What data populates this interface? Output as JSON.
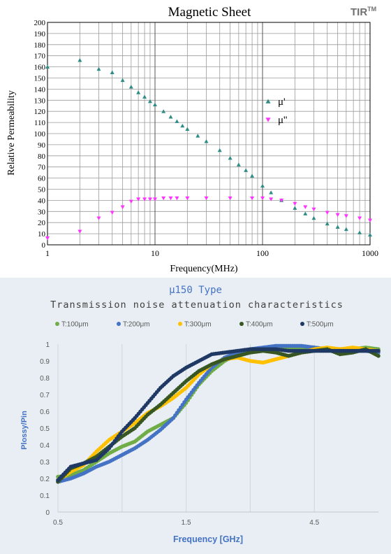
{
  "chart_data": [
    {
      "type": "scatter",
      "title": "Magnetic Sheet",
      "brand": "TIR",
      "brand_sup": "TM",
      "xlabel": "Frequency(MHz)",
      "ylabel": "Relative Permeability",
      "xscale": "log",
      "xlim": [
        1,
        1000
      ],
      "ylim": [
        0,
        200
      ],
      "x_ticks": [
        1,
        10,
        100,
        1000
      ],
      "y_ticks": [
        0,
        10,
        20,
        30,
        40,
        50,
        60,
        70,
        80,
        90,
        100,
        110,
        120,
        130,
        140,
        150,
        160,
        170,
        180,
        190,
        200
      ],
      "grid": true,
      "legend": "right",
      "series": [
        {
          "name": "μ'",
          "marker": "triangle-up",
          "color": "#2e8b85",
          "points": [
            [
              1,
              160
            ],
            [
              2,
              166
            ],
            [
              3,
              158
            ],
            [
              4,
              155
            ],
            [
              5,
              148
            ],
            [
              6,
              142
            ],
            [
              7,
              137
            ],
            [
              8,
              133
            ],
            [
              9,
              129
            ],
            [
              10,
              126
            ],
            [
              12,
              120
            ],
            [
              14,
              115
            ],
            [
              16,
              111
            ],
            [
              18,
              107
            ],
            [
              20,
              104
            ],
            [
              25,
              98
            ],
            [
              30,
              93
            ],
            [
              40,
              85
            ],
            [
              50,
              78
            ],
            [
              60,
              72
            ],
            [
              70,
              67
            ],
            [
              80,
              62
            ],
            [
              100,
              53
            ],
            [
              120,
              47
            ],
            [
              150,
              40
            ],
            [
              200,
              33
            ],
            [
              250,
              28
            ],
            [
              300,
              24
            ],
            [
              400,
              19
            ],
            [
              500,
              16
            ],
            [
              600,
              14
            ],
            [
              800,
              11
            ],
            [
              1000,
              9
            ]
          ]
        },
        {
          "name": "μ''",
          "marker": "triangle-down",
          "color": "#ff33ff",
          "points": [
            [
              1,
              6
            ],
            [
              2,
              12
            ],
            [
              3,
              24
            ],
            [
              4,
              29
            ],
            [
              5,
              34
            ],
            [
              6,
              39
            ],
            [
              7,
              41
            ],
            [
              8,
              41
            ],
            [
              9,
              41
            ],
            [
              10,
              41
            ],
            [
              12,
              42
            ],
            [
              14,
              42
            ],
            [
              16,
              42
            ],
            [
              20,
              42
            ],
            [
              30,
              42
            ],
            [
              50,
              42
            ],
            [
              80,
              42
            ],
            [
              100,
              42
            ],
            [
              120,
              41
            ],
            [
              150,
              40
            ],
            [
              200,
              37
            ],
            [
              250,
              34
            ],
            [
              300,
              32
            ],
            [
              400,
              29
            ],
            [
              500,
              27
            ],
            [
              600,
              26
            ],
            [
              800,
              24
            ],
            [
              1000,
              22
            ]
          ]
        }
      ]
    },
    {
      "type": "scatter",
      "title": "μ150 Type",
      "subtitle": "Transmission noise attenuation characteristics",
      "xlabel": "Frequency [GHz]",
      "ylabel": "Plossy/Pin",
      "xlim": [
        0.5,
        5.5
      ],
      "ylim": [
        0,
        1
      ],
      "x_ticks": [
        0.5,
        1.5,
        2.5,
        3.5,
        4.5
      ],
      "x_tick_labels": [
        "0.5",
        "",
        "1.5",
        "",
        "4.5"
      ],
      "y_ticks": [
        0,
        0.1,
        0.2,
        0.3,
        0.4,
        0.5,
        0.6,
        0.7,
        0.8,
        0.9,
        1
      ],
      "y_tick_labels": [
        "0",
        "0.1",
        "0.2",
        "0.3",
        "0.4",
        "0.5",
        "0.6",
        "0.7",
        "0.8",
        "0.9",
        "1"
      ],
      "grid": "vertical",
      "legend": "top",
      "series": [
        {
          "name": "T:100μm",
          "color": "#70ad47",
          "points": [
            [
              0.5,
              0.21
            ],
            [
              0.7,
              0.22
            ],
            [
              0.9,
              0.25
            ],
            [
              1.1,
              0.3
            ],
            [
              1.3,
              0.35
            ],
            [
              1.5,
              0.39
            ],
            [
              1.7,
              0.42
            ],
            [
              1.9,
              0.48
            ],
            [
              2.1,
              0.52
            ],
            [
              2.3,
              0.56
            ],
            [
              2.5,
              0.65
            ],
            [
              2.7,
              0.76
            ],
            [
              2.9,
              0.84
            ],
            [
              3.1,
              0.9
            ],
            [
              3.3,
              0.94
            ],
            [
              3.5,
              0.96
            ],
            [
              3.7,
              0.97
            ],
            [
              3.9,
              0.97
            ],
            [
              4.1,
              0.97
            ],
            [
              4.3,
              0.97
            ],
            [
              4.5,
              0.98
            ],
            [
              4.7,
              0.97
            ],
            [
              4.9,
              0.97
            ],
            [
              5.1,
              0.97
            ],
            [
              5.3,
              0.98
            ],
            [
              5.5,
              0.97
            ]
          ]
        },
        {
          "name": "T:200μm",
          "color": "#4472c4",
          "points": [
            [
              0.5,
              0.18
            ],
            [
              0.7,
              0.2
            ],
            [
              0.9,
              0.23
            ],
            [
              1.1,
              0.27
            ],
            [
              1.3,
              0.3
            ],
            [
              1.5,
              0.34
            ],
            [
              1.7,
              0.38
            ],
            [
              1.9,
              0.43
            ],
            [
              2.1,
              0.49
            ],
            [
              2.3,
              0.56
            ],
            [
              2.5,
              0.67
            ],
            [
              2.7,
              0.77
            ],
            [
              2.9,
              0.86
            ],
            [
              3.1,
              0.92
            ],
            [
              3.3,
              0.95
            ],
            [
              3.5,
              0.97
            ],
            [
              3.7,
              0.98
            ],
            [
              3.9,
              0.99
            ],
            [
              4.1,
              0.99
            ],
            [
              4.3,
              0.99
            ],
            [
              4.5,
              0.98
            ],
            [
              4.7,
              0.97
            ],
            [
              4.9,
              0.97
            ],
            [
              5.1,
              0.96
            ],
            [
              5.3,
              0.96
            ],
            [
              5.5,
              0.95
            ]
          ]
        },
        {
          "name": "T:300μm",
          "color": "#ffc000",
          "points": [
            [
              0.5,
              0.19
            ],
            [
              0.7,
              0.24
            ],
            [
              0.9,
              0.28
            ],
            [
              1.1,
              0.36
            ],
            [
              1.3,
              0.43
            ],
            [
              1.5,
              0.48
            ],
            [
              1.7,
              0.53
            ],
            [
              1.9,
              0.59
            ],
            [
              2.1,
              0.63
            ],
            [
              2.3,
              0.68
            ],
            [
              2.5,
              0.74
            ],
            [
              2.7,
              0.82
            ],
            [
              2.9,
              0.88
            ],
            [
              3.1,
              0.91
            ],
            [
              3.3,
              0.92
            ],
            [
              3.5,
              0.9
            ],
            [
              3.7,
              0.89
            ],
            [
              3.9,
              0.91
            ],
            [
              4.1,
              0.93
            ],
            [
              4.3,
              0.95
            ],
            [
              4.5,
              0.97
            ],
            [
              4.7,
              0.98
            ],
            [
              4.9,
              0.97
            ],
            [
              5.1,
              0.98
            ],
            [
              5.3,
              0.97
            ],
            [
              5.5,
              0.96
            ]
          ]
        },
        {
          "name": "T:400μm",
          "color": "#375623",
          "points": [
            [
              0.5,
              0.18
            ],
            [
              0.7,
              0.26
            ],
            [
              0.9,
              0.29
            ],
            [
              1.1,
              0.33
            ],
            [
              1.3,
              0.39
            ],
            [
              1.5,
              0.45
            ],
            [
              1.7,
              0.5
            ],
            [
              1.9,
              0.58
            ],
            [
              2.1,
              0.64
            ],
            [
              2.3,
              0.71
            ],
            [
              2.5,
              0.78
            ],
            [
              2.7,
              0.84
            ],
            [
              2.9,
              0.88
            ],
            [
              3.1,
              0.91
            ],
            [
              3.3,
              0.93
            ],
            [
              3.5,
              0.95
            ],
            [
              3.7,
              0.96
            ],
            [
              3.9,
              0.95
            ],
            [
              4.1,
              0.93
            ],
            [
              4.3,
              0.95
            ],
            [
              4.5,
              0.96
            ],
            [
              4.7,
              0.97
            ],
            [
              4.9,
              0.94
            ],
            [
              5.1,
              0.95
            ],
            [
              5.3,
              0.97
            ],
            [
              5.5,
              0.93
            ]
          ]
        },
        {
          "name": "T:500μm",
          "color": "#1f3864",
          "points": [
            [
              0.5,
              0.19
            ],
            [
              0.7,
              0.27
            ],
            [
              0.9,
              0.29
            ],
            [
              1.1,
              0.31
            ],
            [
              1.3,
              0.38
            ],
            [
              1.5,
              0.48
            ],
            [
              1.7,
              0.56
            ],
            [
              1.9,
              0.65
            ],
            [
              2.1,
              0.74
            ],
            [
              2.3,
              0.81
            ],
            [
              2.5,
              0.86
            ],
            [
              2.7,
              0.9
            ],
            [
              2.9,
              0.94
            ],
            [
              3.1,
              0.95
            ],
            [
              3.3,
              0.96
            ],
            [
              3.5,
              0.97
            ],
            [
              3.7,
              0.97
            ],
            [
              3.9,
              0.97
            ],
            [
              4.1,
              0.96
            ],
            [
              4.3,
              0.96
            ],
            [
              4.5,
              0.96
            ],
            [
              4.7,
              0.96
            ],
            [
              4.9,
              0.96
            ],
            [
              5.1,
              0.96
            ],
            [
              5.3,
              0.96
            ],
            [
              5.5,
              0.96
            ]
          ]
        }
      ]
    }
  ]
}
